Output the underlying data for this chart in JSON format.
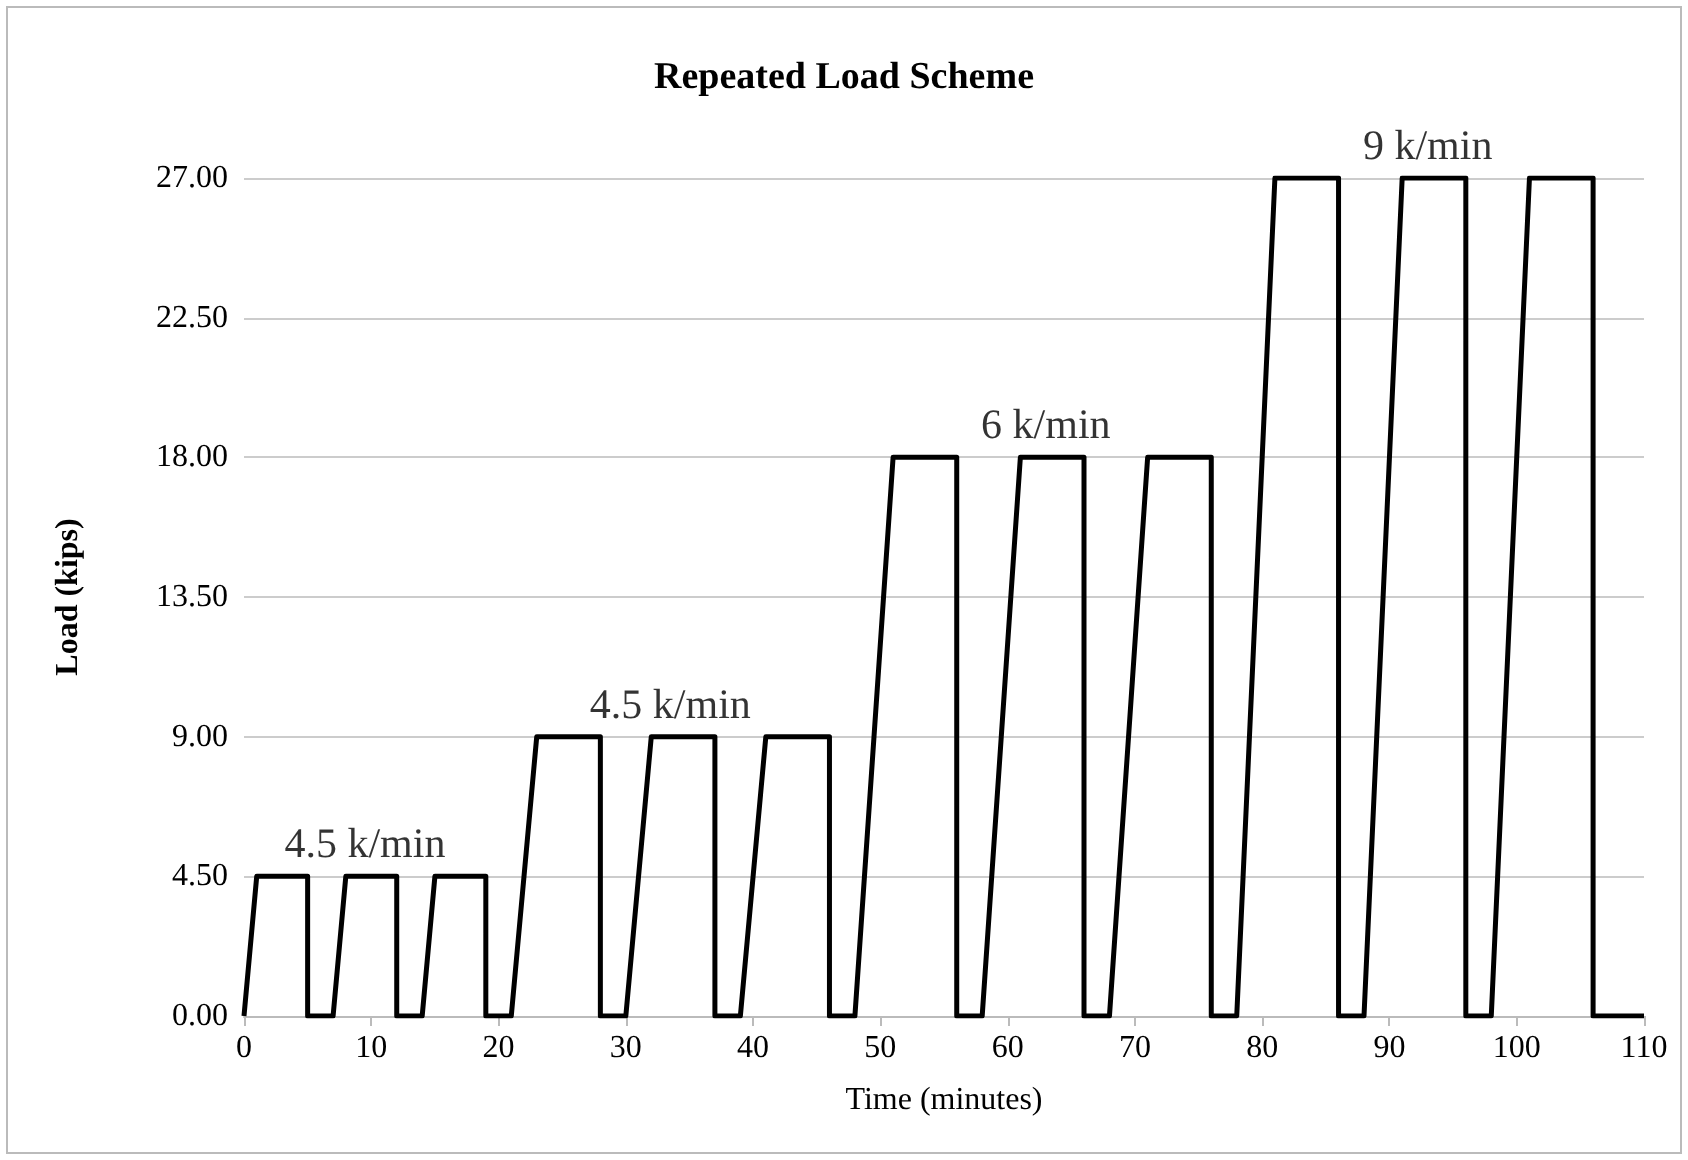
{
  "chart_data": {
    "type": "line",
    "title": "Repeated Load Scheme",
    "xlabel": "Time (minutes)",
    "ylabel": "Load (kips)",
    "x": [
      0,
      1,
      5,
      5,
      7,
      8,
      12,
      12,
      14,
      15,
      19,
      19,
      21,
      23,
      28,
      28,
      30,
      32,
      37,
      37,
      39,
      41,
      46,
      46,
      48,
      51,
      56,
      56,
      58,
      61,
      66,
      66,
      68,
      71,
      76,
      76,
      78,
      81,
      86,
      86,
      88,
      91,
      96,
      96,
      98,
      101,
      106,
      106,
      110
    ],
    "series": [
      {
        "color": "#000000",
        "values": [
          0,
          4.5,
          4.5,
          0,
          0,
          4.5,
          4.5,
          0,
          0,
          4.5,
          4.5,
          0,
          0,
          9,
          9,
          0,
          0,
          9,
          9,
          0,
          0,
          9,
          9,
          0,
          0,
          18,
          18,
          0,
          0,
          18,
          18,
          0,
          0,
          18,
          18,
          0,
          0,
          27,
          27,
          0,
          0,
          27,
          27,
          0,
          0,
          27,
          27,
          0,
          0
        ]
      }
    ],
    "xlim": [
      0,
      110
    ],
    "xticks": [
      0,
      10,
      20,
      30,
      40,
      50,
      60,
      70,
      80,
      90,
      100,
      110
    ],
    "ylim": [
      0,
      27
    ],
    "yticks": [
      {
        "value": 0,
        "label": "0.00"
      },
      {
        "value": 4.5,
        "label": "4.50"
      },
      {
        "value": 9,
        "label": "9.00"
      },
      {
        "value": 13.5,
        "label": "13.50"
      },
      {
        "value": 18,
        "label": "18.00"
      },
      {
        "value": 22.5,
        "label": "22.50"
      },
      {
        "value": 27,
        "label": "27.00"
      }
    ],
    "annotations": [
      {
        "text": "4.5 k/min",
        "x": 9.5,
        "y": 4.5
      },
      {
        "text": "4.5 k/min",
        "x": 33.5,
        "y": 9
      },
      {
        "text": "6 k/min",
        "x": 63,
        "y": 18
      },
      {
        "text": "9 k/min",
        "x": 93,
        "y": 27
      }
    ],
    "grid": "y",
    "marker": "none",
    "line_style": "solid"
  }
}
